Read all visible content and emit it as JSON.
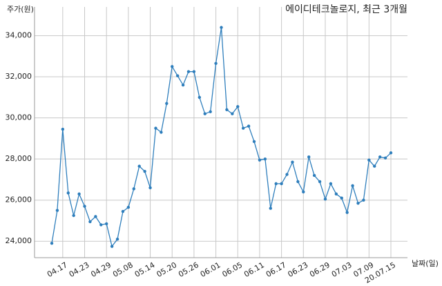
{
  "chart_data": {
    "type": "line",
    "title": "에이디테크놀로지, 최근 3개월",
    "y_label": "주가(원)",
    "x_label": "날짜(일)",
    "categories": [
      null,
      null,
      "04.17",
      null,
      null,
      null,
      "04.23",
      null,
      null,
      null,
      "04.29",
      null,
      null,
      null,
      "05.08",
      null,
      null,
      null,
      "05.14",
      null,
      null,
      null,
      "05.20",
      null,
      null,
      null,
      "05.26",
      null,
      null,
      null,
      "06.01",
      null,
      null,
      null,
      "06.05",
      null,
      null,
      null,
      "06.11",
      null,
      null,
      null,
      "06.17",
      null,
      null,
      null,
      "06.23",
      null,
      null,
      null,
      "06.29",
      null,
      null,
      null,
      "07.03",
      null,
      null,
      null,
      "07.09",
      null,
      null,
      null,
      "20.07.15"
    ],
    "series": [
      {
        "color": "#2e7ebc",
        "values": [
          23900,
          25500,
          29450,
          26350,
          25250,
          26300,
          25700,
          24950,
          25200,
          24800,
          24850,
          23750,
          24100,
          25450,
          25650,
          26550,
          27650,
          27400,
          26600,
          29500,
          29300,
          30700,
          32500,
          32050,
          31600,
          32250,
          32250,
          31000,
          30200,
          30300,
          32650,
          34400,
          30400,
          30200,
          30550,
          29500,
          29600,
          28850,
          27950,
          28000,
          25600,
          26800,
          26800,
          27250,
          27850,
          26900,
          26400,
          28100,
          27200,
          26900,
          26050,
          26800,
          26300,
          26100,
          25400,
          26700,
          25850,
          26000,
          27950,
          27650,
          28100,
          28050,
          28300
        ]
      }
    ],
    "ylim": [
      23200,
      35400
    ],
    "yticks": [
      {
        "value": 24000,
        "label": "24,000"
      },
      {
        "value": 26000,
        "label": "26,000"
      },
      {
        "value": 28000,
        "label": "28,000"
      },
      {
        "value": 30000,
        "label": "30,000"
      },
      {
        "value": 32000,
        "label": "32,000"
      },
      {
        "value": 34000,
        "label": "34,000"
      }
    ],
    "grid": true
  }
}
